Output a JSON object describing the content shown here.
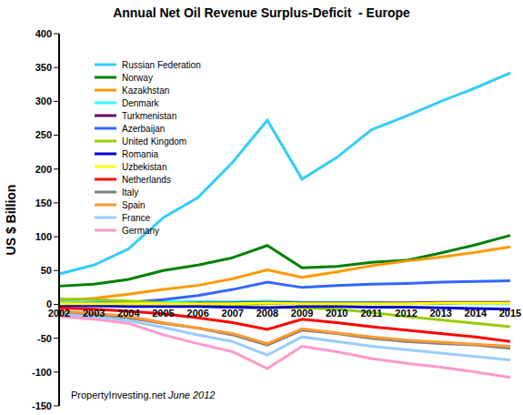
{
  "chart_data": {
    "type": "line",
    "title": "Annual Net Oil Revenue Surplus-Deficit  - Europe",
    "y_label": "US $ Billion",
    "annotations": [
      "PropertyInvesting.net",
      "June 2012"
    ],
    "categories": [
      "2002",
      "2003",
      "2004",
      "2005",
      "2006",
      "2007",
      "2008",
      "2009",
      "2010",
      "2011",
      "2012",
      "2013",
      "2014",
      "2015"
    ],
    "series": [
      {
        "name": "Russian Federation",
        "color": "#33CCFF",
        "values": [
          45,
          58,
          82,
          128,
          158,
          210,
          272,
          185,
          217,
          258,
          278,
          300,
          320,
          342
        ]
      },
      {
        "name": "Norway",
        "color": "#008000",
        "values": [
          27,
          30,
          37,
          50,
          58,
          69,
          87,
          54,
          56,
          62,
          65,
          76,
          88,
          102
        ]
      },
      {
        "name": "Kazakhstan",
        "color": "#FF9900",
        "values": [
          5,
          9,
          15,
          22,
          28,
          38,
          51,
          40,
          48,
          57,
          64,
          70,
          77,
          85
        ]
      },
      {
        "name": "Denmark",
        "color": "#33FFFF",
        "values": [
          3,
          3,
          3,
          4,
          4,
          4,
          5,
          3,
          3,
          3,
          2,
          2,
          1,
          1
        ]
      },
      {
        "name": "Turkmenistan",
        "color": "#660066",
        "values": [
          2,
          2,
          2,
          2,
          3,
          3,
          4,
          3,
          3,
          3,
          3,
          4,
          4,
          4
        ]
      },
      {
        "name": "Azerbaijan",
        "color": "#3366FF",
        "values": [
          1,
          2,
          3,
          7,
          13,
          22,
          33,
          25,
          28,
          30,
          31,
          33,
          34,
          35
        ]
      },
      {
        "name": "United Kingdom",
        "color": "#99CC00",
        "values": [
          8,
          7,
          5,
          2,
          0,
          -2,
          -4,
          -5,
          -7,
          -12,
          -18,
          -23,
          -28,
          -33
        ]
      },
      {
        "name": "Romania",
        "color": "#0000CC",
        "values": [
          -2,
          -2,
          -3,
          -3,
          -3,
          -4,
          -5,
          -3,
          -3,
          -4,
          -4,
          -5,
          -6,
          -7
        ]
      },
      {
        "name": "Uzbekistan",
        "color": "#FFFF00",
        "values": [
          1,
          1,
          1,
          1,
          1,
          1,
          2,
          1,
          1,
          1,
          1,
          2,
          2,
          2
        ]
      },
      {
        "name": "Netherlands",
        "color": "#FF0000",
        "values": [
          -5,
          -7,
          -10,
          -14,
          -20,
          -27,
          -37,
          -22,
          -27,
          -33,
          -38,
          -43,
          -48,
          -55
        ]
      },
      {
        "name": "Italy",
        "color": "#808080",
        "values": [
          -12,
          -15,
          -20,
          -28,
          -35,
          -45,
          -60,
          -38,
          -43,
          -50,
          -55,
          -58,
          -60,
          -65
        ]
      },
      {
        "name": "Spain",
        "color": "#FF9933",
        "values": [
          -10,
          -13,
          -18,
          -27,
          -35,
          -43,
          -58,
          -36,
          -42,
          -48,
          -53,
          -56,
          -59,
          -62
        ]
      },
      {
        "name": "France",
        "color": "#99CCFF",
        "values": [
          -15,
          -18,
          -24,
          -34,
          -45,
          -55,
          -75,
          -48,
          -55,
          -62,
          -67,
          -72,
          -77,
          -82
        ]
      },
      {
        "name": "Germany",
        "color": "#FF99CC",
        "values": [
          -18,
          -22,
          -28,
          -45,
          -58,
          -70,
          -95,
          -62,
          -70,
          -80,
          -87,
          -93,
          -100,
          -108
        ]
      }
    ],
    "ylim": [
      -150,
      400
    ],
    "yticks": [
      -150,
      -100,
      -50,
      0,
      50,
      100,
      150,
      200,
      250,
      300,
      350,
      400
    ],
    "grid": false
  }
}
